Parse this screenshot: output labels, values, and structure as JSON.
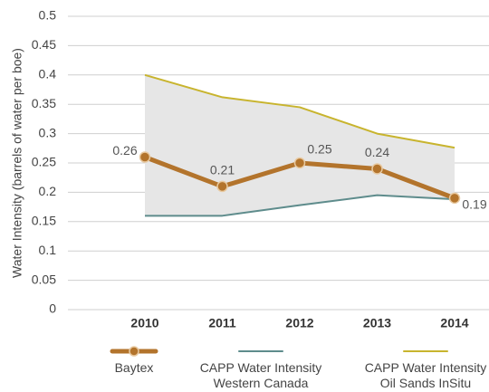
{
  "chart_data": {
    "type": "line",
    "y_label": "Water Intensity (barrels of water per boe)",
    "categories": [
      "2010",
      "2011",
      "2012",
      "2013",
      "2014"
    ],
    "series": [
      {
        "name": "Baytex",
        "color": "#b3742c",
        "values": [
          0.26,
          0.21,
          0.25,
          0.24,
          0.19
        ]
      },
      {
        "name": "CAPP Water Intensity\nWestern Canada",
        "color": "#5e8c8c",
        "values": [
          0.16,
          0.16,
          0.178,
          0.195,
          0.188
        ]
      },
      {
        "name": "CAPP Water Intensity\nOil Sands InSitu",
        "color": "#c8b42e",
        "values": [
          0.4,
          0.362,
          0.345,
          0.3,
          0.276
        ]
      }
    ],
    "band_color": "#e6e6e6",
    "ylim": [
      0,
      0.5
    ],
    "yticks": [
      0,
      0.05,
      0.1,
      0.15,
      0.2,
      0.25,
      0.3,
      0.35,
      0.4,
      0.45,
      0.5
    ],
    "grid": true
  }
}
